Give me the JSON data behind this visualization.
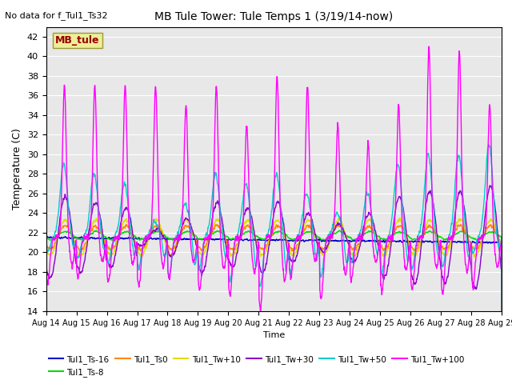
{
  "title": "MB Tule Tower: Tule Temps 1 (3/19/14-now)",
  "no_data_label": "No data for f_Tul1_Ts32",
  "xlabel": "Time",
  "ylabel": "Temperature (C)",
  "ylim": [
    14,
    43
  ],
  "yticks": [
    14,
    16,
    18,
    20,
    22,
    24,
    26,
    28,
    30,
    32,
    34,
    36,
    38,
    40,
    42
  ],
  "x_tick_labels": [
    "Aug 14",
    "Aug 15",
    "Aug 16",
    "Aug 17",
    "Aug 18",
    "Aug 19",
    "Aug 20",
    "Aug 21",
    "Aug 22",
    "Aug 23",
    "Aug 24",
    "Aug 25",
    "Aug 26",
    "Aug 27",
    "Aug 28",
    "Aug 29"
  ],
  "legend_box_color": "#eeee99",
  "legend_box_text": "MB_tule",
  "legend_box_text_color": "#990000",
  "background_color": "#e8e8e8",
  "series_colors": {
    "Tul1_Ts-16": "#0000cc",
    "Tul1_Ts-8": "#00dd00",
    "Tul1_Ts0": "#ff8800",
    "Tul1_Tw+10": "#dddd00",
    "Tul1_Tw+30": "#8800cc",
    "Tul1_Tw+50": "#00cccc",
    "Tul1_Tw+100": "#ff00ff"
  },
  "tw100_peaks": [
    37,
    37,
    37,
    37,
    35,
    37,
    33,
    38,
    37,
    33,
    31,
    35,
    41,
    40.5,
    35
  ],
  "tw100_dip_nights": [
    16.8,
    17.5,
    17.0,
    16.5,
    17.2,
    16.2,
    15.5,
    14.2,
    17.5,
    15.2,
    17.2,
    16.0,
    16.2,
    15.8,
    16.5
  ],
  "tw50_peaks": [
    29,
    28,
    27,
    23,
    25,
    28,
    27,
    28,
    26,
    24,
    26,
    29,
    30,
    30,
    31
  ],
  "tw50_dips": [
    20.0,
    19.5,
    19.0,
    18.5,
    17.5,
    18.5,
    17.0,
    16.5,
    18.0,
    17.5,
    19.0,
    18.0,
    18.5,
    18.5,
    20.0
  ],
  "base_temp": 21.5
}
